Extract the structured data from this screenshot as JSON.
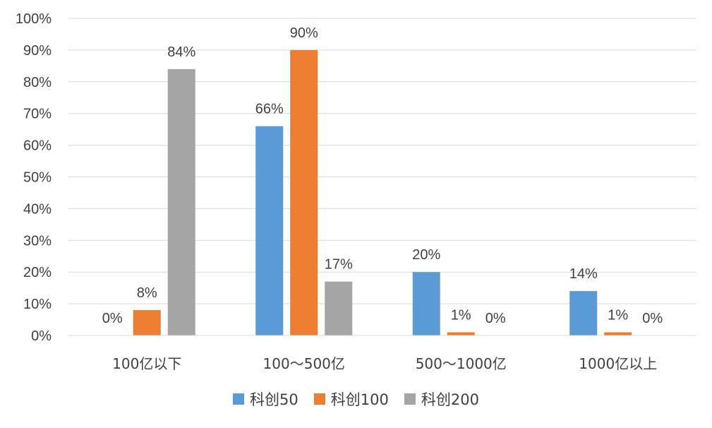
{
  "chart_data": {
    "type": "bar",
    "categories": [
      "100亿以下",
      "100～500亿",
      "500～1000亿",
      "1000亿以上"
    ],
    "series": [
      {
        "name": "科创50",
        "color": "#5B9BD5",
        "values": [
          0,
          66,
          20,
          14
        ],
        "labels": [
          "0%",
          "66%",
          "20%",
          "14%"
        ]
      },
      {
        "name": "科创100",
        "color": "#ED7D31",
        "values": [
          8,
          90,
          1,
          1
        ],
        "labels": [
          "8%",
          "90%",
          "1%",
          "1%"
        ]
      },
      {
        "name": "科创200",
        "color": "#A5A5A5",
        "values": [
          84,
          17,
          0,
          0
        ],
        "labels": [
          "84%",
          "17%",
          "0%",
          "0%"
        ]
      }
    ],
    "ylim": [
      0,
      100
    ],
    "yticks": [
      "0%",
      "10%",
      "20%",
      "30%",
      "40%",
      "50%",
      "60%",
      "70%",
      "80%",
      "90%",
      "100%"
    ],
    "grid": true,
    "legend_position": "bottom"
  }
}
